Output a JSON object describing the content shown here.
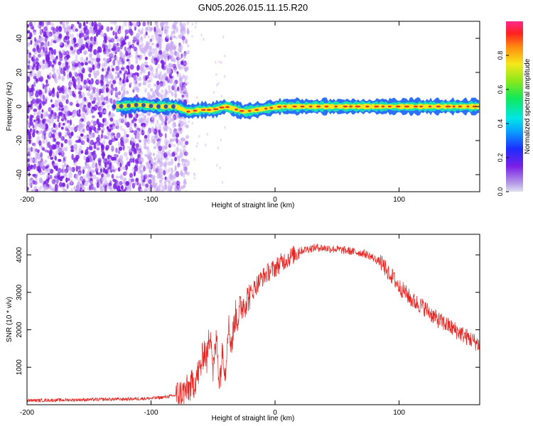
{
  "figure_title": "GN05.2026.015.11.15.R20",
  "colors": {
    "snr_line": "#e8221e",
    "speckle": "#7a1fe6",
    "ridge_outer": "#1560ff",
    "ridge_mid": "#19e0b0",
    "ridge_core": "#e43b2b"
  },
  "chart_data": [
    {
      "type": "heatmap",
      "name": "spectrogram",
      "title": "",
      "xlabel": "Height of straight line (km)",
      "ylabel": "Frequency (Hz)",
      "xlim": [
        -200,
        165
      ],
      "ylim": [
        -50,
        50
      ],
      "xticks": [
        -200,
        -100,
        0,
        100
      ],
      "yticks": [
        -40,
        -20,
        0,
        20,
        40
      ],
      "ridge": {
        "description_x_start": -128,
        "x_end": 165,
        "center_freq": [
          [
            -128,
            0
          ],
          [
            -110,
            1
          ],
          [
            -95,
            0
          ],
          [
            -80,
            0
          ],
          [
            -70,
            -3
          ],
          [
            -60,
            -2
          ],
          [
            -50,
            -2
          ],
          [
            -40,
            0
          ],
          [
            -35,
            -1
          ],
          [
            -25,
            -3
          ],
          [
            -15,
            -2
          ],
          [
            -5,
            -1
          ],
          [
            5,
            0
          ],
          [
            20,
            0
          ],
          [
            40,
            0
          ],
          [
            60,
            0
          ],
          [
            80,
            0
          ],
          [
            100,
            0
          ],
          [
            120,
            0
          ],
          [
            140,
            0
          ],
          [
            165,
            0
          ]
        ]
      },
      "noise_region_x": [
        -200,
        -85
      ],
      "colorbar": {
        "label": "Normalized spectral amplitude",
        "range": [
          0,
          1
        ],
        "ticks": [
          "0.0",
          "0.2",
          "0.4",
          "0.6",
          "0.8"
        ],
        "tick_values": [
          0.0,
          0.2,
          0.4,
          0.6,
          0.8
        ]
      }
    },
    {
      "type": "line",
      "name": "snr",
      "title": "",
      "xlabel": "Height of straight line (km)",
      "ylabel": "SNR (10 * v/v)",
      "xlim": [
        -200,
        165
      ],
      "ylim": [
        0,
        4550
      ],
      "xticks": [
        -200,
        -100,
        0,
        100
      ],
      "yticks": [
        1000,
        2000,
        3000,
        4000
      ],
      "series": [
        {
          "name": "SNR",
          "x": [
            -200,
            -180,
            -160,
            -140,
            -120,
            -100,
            -90,
            -80,
            -75,
            -70,
            -65,
            -60,
            -57,
            -55,
            -52,
            -50,
            -47,
            -45,
            -42,
            -40,
            -38,
            -35,
            -32,
            -30,
            -28,
            -25,
            -20,
            -15,
            -10,
            -5,
            0,
            5,
            10,
            15,
            20,
            25,
            30,
            35,
            40,
            50,
            60,
            70,
            75,
            80,
            85,
            90,
            95,
            100,
            105,
            110,
            120,
            130,
            140,
            150,
            160,
            165
          ],
          "y": [
            110,
            120,
            130,
            140,
            150,
            170,
            200,
            250,
            300,
            420,
            600,
            1000,
            1500,
            1200,
            2100,
            900,
            1800,
            600,
            1500,
            800,
            2200,
            1600,
            2400,
            2300,
            2600,
            2700,
            2950,
            3200,
            3400,
            3550,
            3650,
            3800,
            3900,
            4000,
            4100,
            4150,
            4180,
            4200,
            4180,
            4150,
            4100,
            4050,
            4000,
            3900,
            3800,
            3600,
            3400,
            3150,
            3000,
            2800,
            2600,
            2300,
            2100,
            1900,
            1700,
            1600
          ]
        }
      ]
    }
  ]
}
